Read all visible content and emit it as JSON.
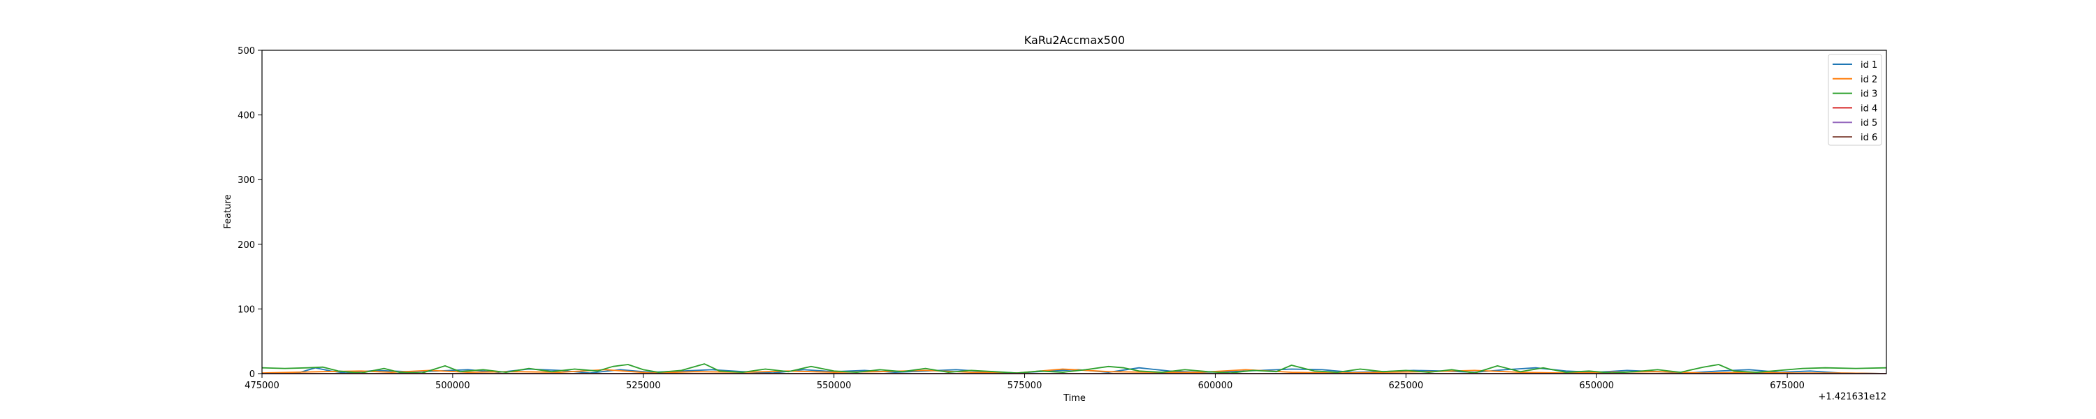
{
  "chart_data": {
    "type": "line",
    "title": "KaRu2Accmax500",
    "xlabel": "Time",
    "ylabel": "Feature",
    "x_offset_label": "+1.421631e12",
    "xlim": [
      475000,
      688000
    ],
    "ylim": [
      0,
      500
    ],
    "x_ticks": [
      475000,
      500000,
      525000,
      550000,
      575000,
      600000,
      625000,
      650000,
      675000
    ],
    "y_ticks": [
      0,
      100,
      200,
      300,
      400,
      500
    ],
    "grid": false,
    "legend_position": "top-right",
    "series": [
      {
        "name": "id 1",
        "color": "#1f77b4",
        "x": [
          475000,
          480000,
          482000,
          484000,
          486000,
          490000,
          494000,
          498000,
          502000,
          506000,
          510000,
          514000,
          518000,
          522000,
          526000,
          530000,
          534000,
          538000,
          542000,
          546000,
          550000,
          554000,
          558000,
          562000,
          566000,
          570000,
          574000,
          578000,
          582000,
          586000,
          590000,
          594000,
          598000,
          602000,
          606000,
          610000,
          614000,
          618000,
          622000,
          626000,
          630000,
          634000,
          638000,
          642000,
          646000,
          650000,
          654000,
          658000,
          662000,
          666000,
          670000,
          674000,
          678000,
          682000,
          688000
        ],
        "y": [
          0,
          2,
          9,
          4,
          1,
          5,
          3,
          4,
          6,
          2,
          7,
          5,
          1,
          6,
          2,
          4,
          6,
          3,
          1,
          6,
          3,
          5,
          2,
          4,
          6,
          3,
          1,
          4,
          6,
          2,
          9,
          4,
          2,
          3,
          5,
          7,
          6,
          2,
          3,
          5,
          4,
          2,
          6,
          9,
          4,
          2,
          5,
          3,
          1,
          4,
          6,
          2,
          4,
          1,
          0
        ]
      },
      {
        "name": "id 2",
        "color": "#ff7f0e",
        "x": [
          475000,
          479000,
          483000,
          488000,
          492000,
          497000,
          502000,
          508000,
          514000,
          520000,
          526000,
          532000,
          538000,
          544000,
          550000,
          556000,
          562000,
          568000,
          574000,
          580000,
          586000,
          592000,
          598000,
          604000,
          610000,
          616000,
          622000,
          628000,
          634000,
          640000,
          646000,
          652000,
          658000,
          664000,
          670000,
          676000,
          682000,
          688000
        ],
        "y": [
          1,
          2,
          3,
          4,
          2,
          5,
          2,
          3,
          2,
          6,
          1,
          3,
          2,
          4,
          2,
          3,
          5,
          2,
          1,
          7,
          3,
          2,
          2,
          6,
          2,
          1,
          2,
          3,
          5,
          2,
          1,
          2,
          3,
          1,
          2,
          1,
          1,
          0
        ]
      },
      {
        "name": "id 3",
        "color": "#2ca02c",
        "x": [
          475000,
          478000,
          481000,
          483000,
          485000,
          488000,
          491000,
          493000,
          496000,
          499000,
          501000,
          504000,
          507000,
          510000,
          513000,
          516000,
          519000,
          521000,
          523000,
          525000,
          527000,
          530000,
          533000,
          535000,
          538000,
          541000,
          544000,
          547000,
          550000,
          553000,
          556000,
          559000,
          562000,
          565000,
          568000,
          571000,
          574000,
          577000,
          580000,
          583000,
          586000,
          588000,
          590000,
          593000,
          596000,
          599000,
          602000,
          605000,
          608000,
          610000,
          613000,
          616000,
          619000,
          622000,
          625000,
          628000,
          631000,
          634000,
          637000,
          640000,
          643000,
          646000,
          649000,
          652000,
          655000,
          658000,
          661000,
          664000,
          666000,
          668000,
          671000,
          674000,
          677000,
          680000,
          684000,
          688000
        ],
        "y": [
          9,
          8,
          9,
          10,
          4,
          1,
          8,
          2,
          1,
          12,
          3,
          6,
          2,
          8,
          3,
          7,
          4,
          11,
          14,
          6,
          2,
          5,
          15,
          4,
          2,
          7,
          3,
          11,
          4,
          2,
          6,
          3,
          8,
          2,
          5,
          3,
          1,
          4,
          2,
          6,
          11,
          9,
          4,
          2,
          6,
          3,
          1,
          5,
          3,
          13,
          4,
          2,
          7,
          3,
          5,
          2,
          6,
          1,
          12,
          3,
          9,
          2,
          4,
          1,
          3,
          6,
          2,
          10,
          14,
          4,
          2,
          5,
          8,
          9,
          8,
          9
        ]
      },
      {
        "name": "id 4",
        "color": "#d62728",
        "x": [
          475000,
          500000,
          525000,
          550000,
          575000,
          600000,
          625000,
          650000,
          675000,
          688000
        ],
        "y": [
          0,
          0,
          0,
          0,
          0,
          0,
          0,
          0,
          0,
          0
        ]
      },
      {
        "name": "id 5",
        "color": "#9467bd",
        "x": [
          475000,
          500000,
          525000,
          550000,
          575000,
          600000,
          625000,
          650000,
          675000,
          688000
        ],
        "y": [
          0,
          0,
          0,
          0,
          0,
          0,
          0,
          0,
          0,
          0
        ]
      },
      {
        "name": "id 6",
        "color": "#8c564b",
        "x": [
          475000,
          500000,
          525000,
          550000,
          575000,
          600000,
          625000,
          650000,
          675000,
          688000
        ],
        "y": [
          0,
          0,
          0,
          0,
          0,
          0,
          0,
          0,
          0,
          0
        ]
      }
    ]
  }
}
